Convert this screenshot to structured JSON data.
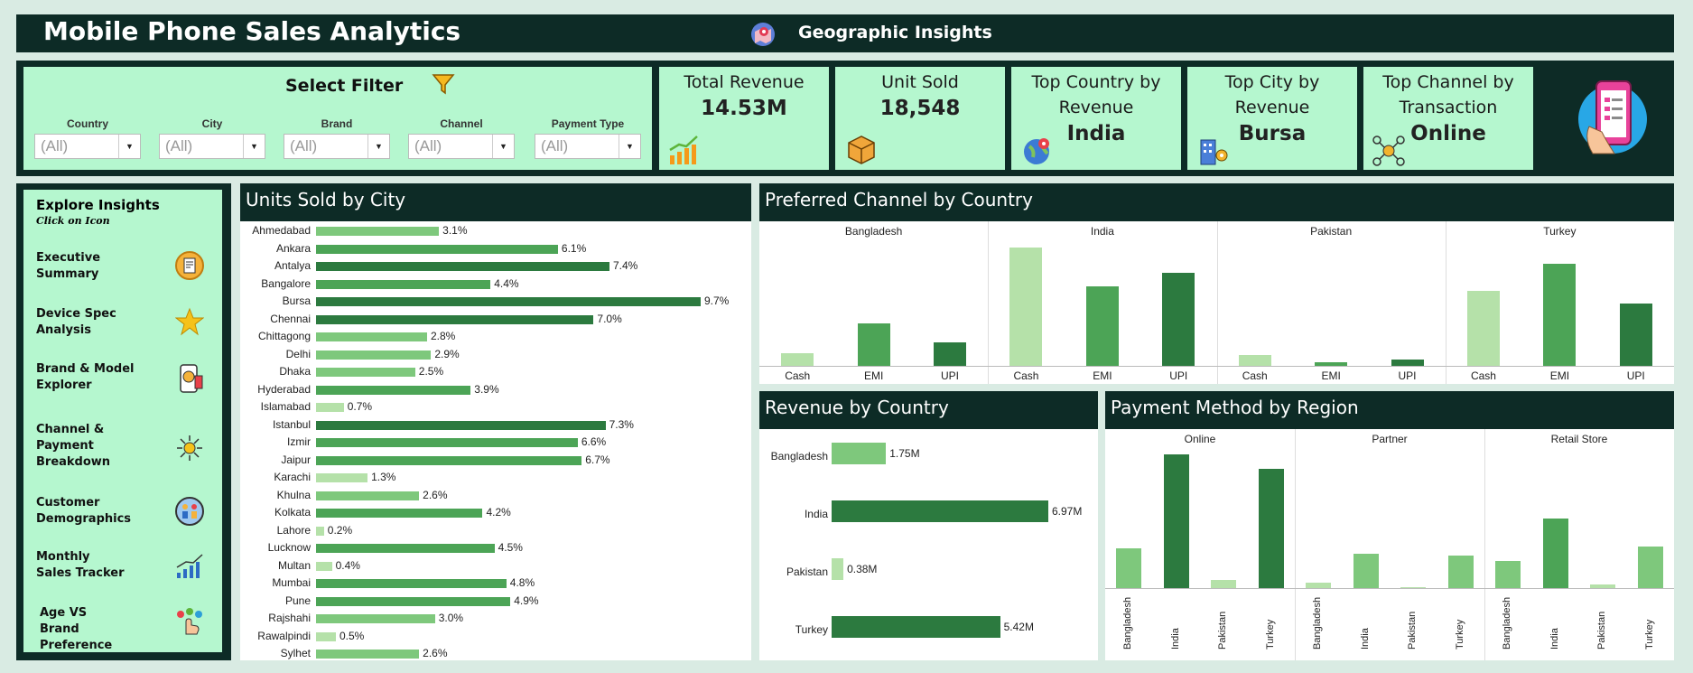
{
  "header": {
    "title": "Mobile Phone Sales Analytics",
    "geo_label": "Geographic Insights"
  },
  "filters": {
    "title": "Select Filter",
    "items": [
      {
        "label": "Country",
        "value": "(All)"
      },
      {
        "label": "City",
        "value": "(All)"
      },
      {
        "label": "Brand",
        "value": "(All)"
      },
      {
        "label": "Channel",
        "value": "(All)"
      },
      {
        "label": "Payment Type",
        "value": "(All)"
      }
    ]
  },
  "kpis": [
    {
      "title": "Total Revenue",
      "value": "14.53M",
      "icon": "chart-growth-icon"
    },
    {
      "title": "Unit Sold",
      "value": "18,548",
      "icon": "box-icon"
    },
    {
      "title": "Top Country by Revenue",
      "value": "India",
      "icon": "globe-pin-icon"
    },
    {
      "title": "Top City by Revenue",
      "value": "Bursa",
      "icon": "building-pin-icon"
    },
    {
      "title": "Top Channel by Transaction",
      "value": "Online",
      "icon": "channel-network-icon"
    }
  ],
  "sidebar": {
    "title": "Explore Insights",
    "subtitle": "Click on Icon",
    "items": [
      {
        "label": "Executive Summary",
        "icon": "report-icon"
      },
      {
        "label": "Device Spec Analysis",
        "icon": "star-icon"
      },
      {
        "label": "Brand & Model Explorer",
        "icon": "phone-badge-icon"
      },
      {
        "label": "Channel & Payment Breakdown",
        "icon": "network-hub-icon"
      },
      {
        "label": "Customer Demographics",
        "icon": "people-icon"
      },
      {
        "label": "Monthly Sales Tracker",
        "icon": "growth-chart-icon"
      },
      {
        "label": "Age VS Brand Preference",
        "icon": "click-hand-icon"
      }
    ]
  },
  "colors": {
    "dark": "#0d2b26",
    "mint": "#b5f7cf",
    "light_green": "#7ec87c",
    "mid_green": "#4ca456",
    "dark_green": "#2c7a3f",
    "pale_green": "#b5e1a9"
  },
  "chart_data": [
    {
      "type": "bar",
      "title": "Units Sold by City",
      "orientation": "horizontal",
      "categories": [
        "Ahmedabad",
        "Ankara",
        "Antalya",
        "Bangalore",
        "Bursa",
        "Chennai",
        "Chittagong",
        "Delhi",
        "Dhaka",
        "Hyderabad",
        "Islamabad",
        "Istanbul",
        "Izmir",
        "Jaipur",
        "Karachi",
        "Khulna",
        "Kolkata",
        "Lahore",
        "Lucknow",
        "Multan",
        "Mumbai",
        "Pune",
        "Rajshahi",
        "Rawalpindi",
        "Sylhet"
      ],
      "values": [
        3.1,
        6.1,
        7.4,
        4.4,
        9.7,
        7.0,
        2.8,
        2.9,
        2.5,
        3.9,
        0.7,
        7.3,
        6.6,
        6.7,
        1.3,
        2.6,
        4.2,
        0.2,
        4.5,
        0.4,
        4.8,
        4.9,
        3.0,
        0.5,
        2.6
      ],
      "labels": [
        "3.1%",
        "6.1%",
        "7.4%",
        "4.4%",
        "9.7%",
        "7.0%",
        "2.8%",
        "2.9%",
        "2.5%",
        "3.9%",
        "0.7%",
        "7.3%",
        "6.6%",
        "6.7%",
        "1.3%",
        "2.6%",
        "4.2%",
        "0.2%",
        "4.5%",
        "0.4%",
        "4.8%",
        "4.9%",
        "3.0%",
        "0.5%",
        "2.6%"
      ]
    },
    {
      "type": "bar",
      "title": "Preferred Channel by Country",
      "facets": [
        "Bangladesh",
        "India",
        "Pakistan",
        "Turkey"
      ],
      "categories": [
        "Cash",
        "EMI",
        "UPI"
      ],
      "values": [
        [
          10,
          34,
          19
        ],
        [
          95,
          64,
          75
        ],
        [
          9,
          3,
          5
        ],
        [
          60,
          82,
          50
        ]
      ]
    },
    {
      "type": "bar",
      "title": "Revenue by Country",
      "orientation": "horizontal",
      "categories": [
        "Bangladesh",
        "India",
        "Pakistan",
        "Turkey"
      ],
      "values": [
        1.75,
        6.97,
        0.38,
        5.42
      ],
      "labels": [
        "1.75M",
        "6.97M",
        "0.38M",
        "5.42M"
      ]
    },
    {
      "type": "bar",
      "title": "Payment Method by Region",
      "facets": [
        "Online",
        "Partner",
        "Retail Store"
      ],
      "categories": [
        "Bangladesh",
        "India",
        "Pakistan",
        "Turkey"
      ],
      "values": [
        [
          30,
          100,
          6,
          89
        ],
        [
          4,
          26,
          1,
          24
        ],
        [
          20,
          52,
          3,
          31
        ]
      ]
    }
  ]
}
